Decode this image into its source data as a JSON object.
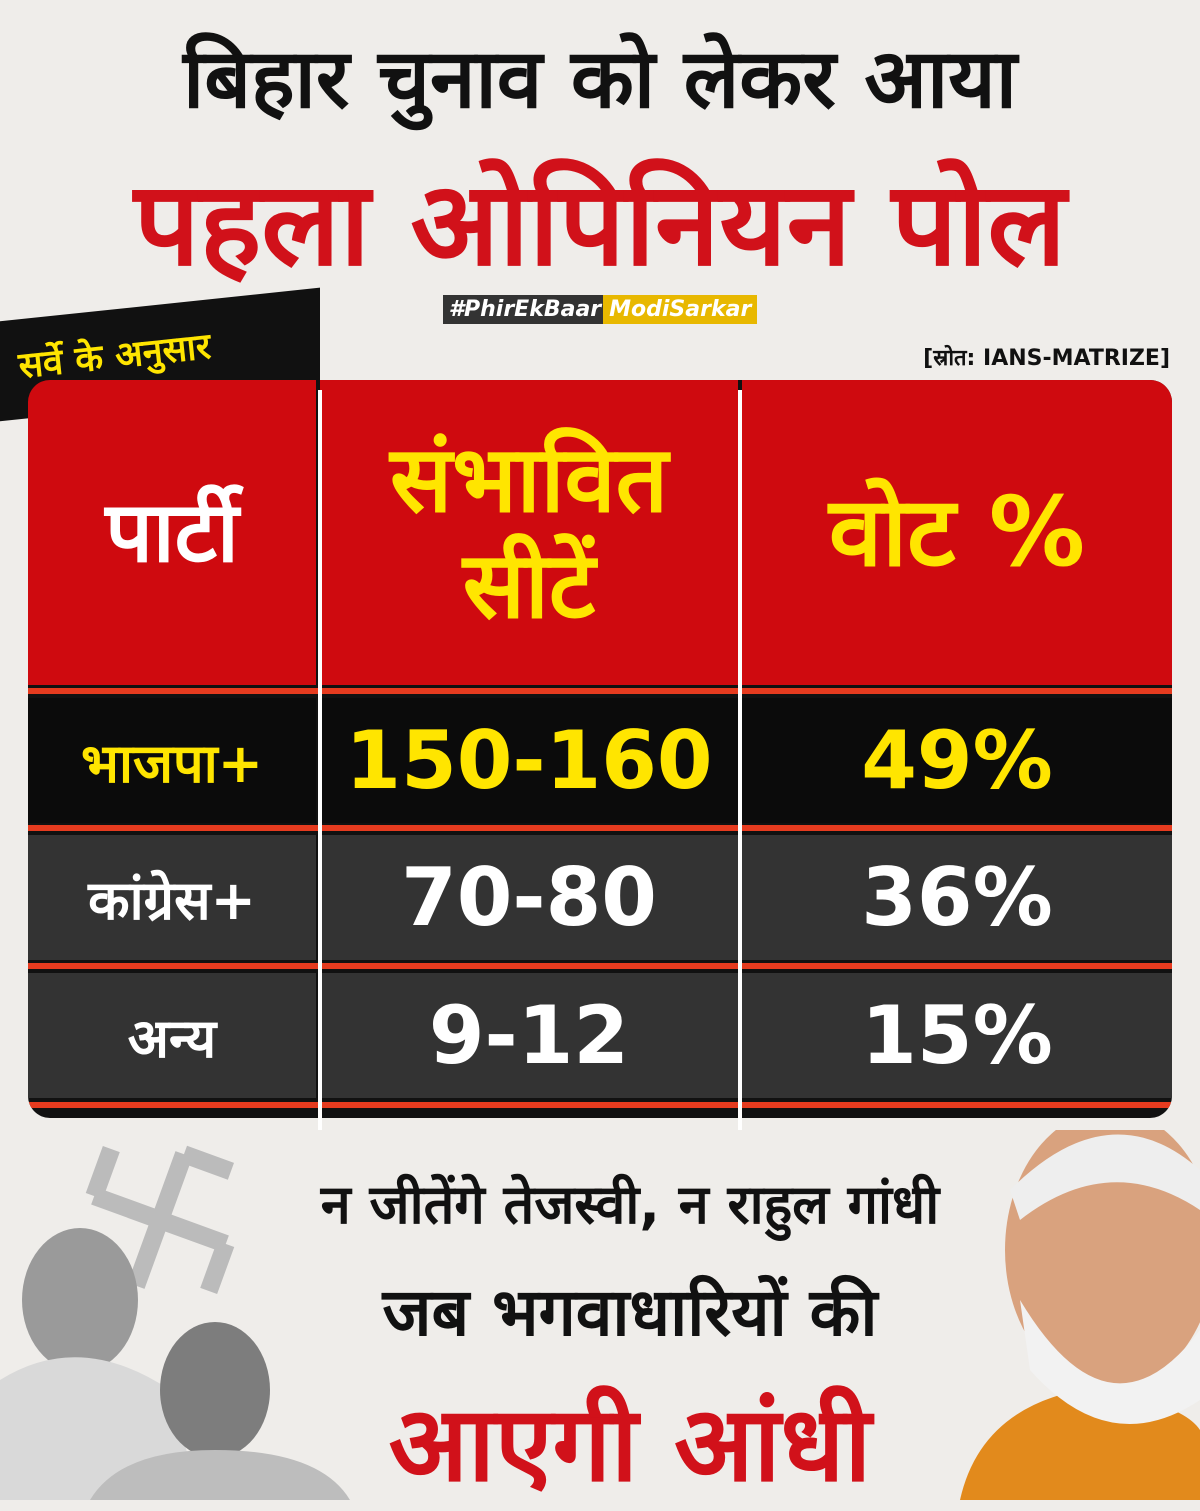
{
  "header": {
    "line1": "बिहार चुनाव को लेकर आया",
    "line2": "पहला ओपिनियन पोल",
    "hashtag_prefix": "#PhirEkBaar",
    "hashtag_highlight": "ModiSarkar"
  },
  "survey_label": "सर्वे के अनुसार",
  "source": "[स्रोत: IANS-MATRIZE]",
  "table": {
    "headers": [
      "पार्टी",
      "संभावित सीटें",
      "वोट %"
    ],
    "rows": [
      [
        "भाजपा+",
        "150-160",
        "49%"
      ],
      [
        "कांग्रेस+",
        "70-80",
        "36%"
      ],
      [
        "अन्य",
        "9-12",
        "15%"
      ]
    ]
  },
  "footer": {
    "line1": "न जीतेंगे तेजस्वी, न राहुल गांधी",
    "line2": "जब भगवाधारियों की",
    "line3": "आएगी आंधी"
  }
}
